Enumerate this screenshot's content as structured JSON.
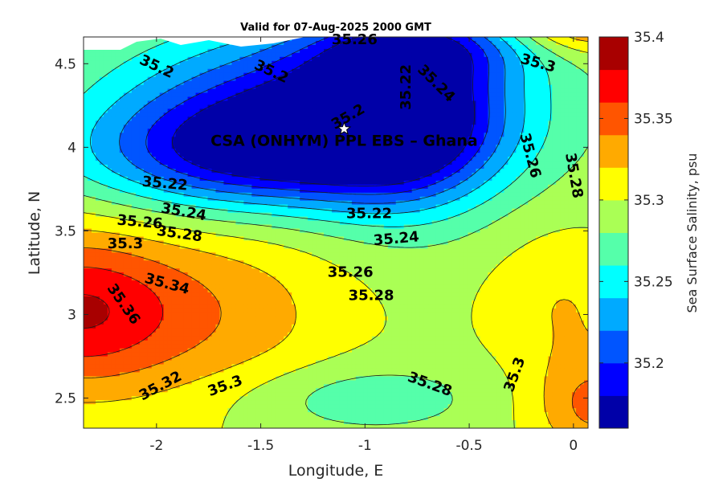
{
  "chart_data": {
    "type": "contour",
    "title": "Valid for 07-Aug-2025 2000 GMT",
    "xlabel": "Longitude, E",
    "ylabel": "Latitude, N",
    "xlim": [
      -2.35,
      0.07
    ],
    "ylim": [
      2.32,
      4.66
    ],
    "x_ticks": [
      -2,
      -1.5,
      -1,
      -0.5,
      0
    ],
    "x_tick_labels": [
      "-2",
      "-1.5",
      "-1",
      "-0.5",
      "0"
    ],
    "y_ticks": [
      2.5,
      3,
      3.5,
      4,
      4.5
    ],
    "y_tick_labels": [
      "2.5",
      "3",
      "3.5",
      "4",
      "4.5"
    ],
    "colorbar": {
      "label": "Sea Surface Salinity, psu",
      "range": [
        35.16,
        35.4
      ],
      "levels": [
        35.16,
        35.18,
        35.2,
        35.22,
        35.24,
        35.26,
        35.28,
        35.3,
        35.32,
        35.34,
        35.36,
        35.38,
        35.4
      ],
      "colors": [
        "#0000a8",
        "#0000ff",
        "#0055ff",
        "#00aaff",
        "#00ffff",
        "#55ffaa",
        "#aaff55",
        "#ffff00",
        "#ffaa00",
        "#ff5500",
        "#ff0000",
        "#a80000"
      ],
      "ticks": [
        35.2,
        35.25,
        35.3,
        35.35,
        35.4
      ],
      "tick_labels": [
        "35.2",
        "35.25",
        "35.3",
        "35.35",
        "35.4"
      ]
    },
    "contour_labels": [
      {
        "text": "35.2",
        "lon": -2.0,
        "lat": 4.48,
        "angle": 25
      },
      {
        "text": "35.2",
        "lon": -1.45,
        "lat": 4.45,
        "angle": 25
      },
      {
        "text": "35.2",
        "lon": -1.08,
        "lat": 4.18,
        "angle": -30
      },
      {
        "text": "35.26",
        "lon": -1.05,
        "lat": 4.64,
        "angle": 0
      },
      {
        "text": "35.22",
        "lon": -0.8,
        "lat": 4.36,
        "angle": -90
      },
      {
        "text": "35.24",
        "lon": -0.66,
        "lat": 4.38,
        "angle": 45
      },
      {
        "text": "35.3",
        "lon": -0.17,
        "lat": 4.5,
        "angle": 15
      },
      {
        "text": "35.26",
        "lon": -0.21,
        "lat": 3.95,
        "angle": 75
      },
      {
        "text": "35.28",
        "lon": 0.0,
        "lat": 3.83,
        "angle": 80
      },
      {
        "text": "35.22",
        "lon": -1.96,
        "lat": 3.78,
        "angle": 5
      },
      {
        "text": "35.24",
        "lon": -1.87,
        "lat": 3.61,
        "angle": 10
      },
      {
        "text": "35.26",
        "lon": -2.08,
        "lat": 3.55,
        "angle": 5
      },
      {
        "text": "35.28",
        "lon": -1.89,
        "lat": 3.48,
        "angle": 8
      },
      {
        "text": "35.3",
        "lon": -2.15,
        "lat": 3.42,
        "angle": 0
      },
      {
        "text": "35.22",
        "lon": -0.98,
        "lat": 3.6,
        "angle": 0
      },
      {
        "text": "35.24",
        "lon": -0.85,
        "lat": 3.45,
        "angle": -5
      },
      {
        "text": "35.26",
        "lon": -1.07,
        "lat": 3.25,
        "angle": 0
      },
      {
        "text": "35.28",
        "lon": -0.97,
        "lat": 3.11,
        "angle": 0
      },
      {
        "text": "35.34",
        "lon": -1.95,
        "lat": 3.18,
        "angle": 15
      },
      {
        "text": "35.36",
        "lon": -2.16,
        "lat": 3.06,
        "angle": 55
      },
      {
        "text": "35.32",
        "lon": -1.98,
        "lat": 2.57,
        "angle": -28
      },
      {
        "text": "35.3",
        "lon": -1.67,
        "lat": 2.57,
        "angle": -20
      },
      {
        "text": "35.28",
        "lon": -0.69,
        "lat": 2.58,
        "angle": 20
      },
      {
        "text": "35.3",
        "lon": -0.28,
        "lat": 2.64,
        "angle": -70
      }
    ],
    "markers": [
      {
        "lon": -1.1,
        "lat": 4.11,
        "symbol": "star",
        "label": "CSA (ONHYM) PPL EBS  – Ghana"
      }
    ]
  }
}
